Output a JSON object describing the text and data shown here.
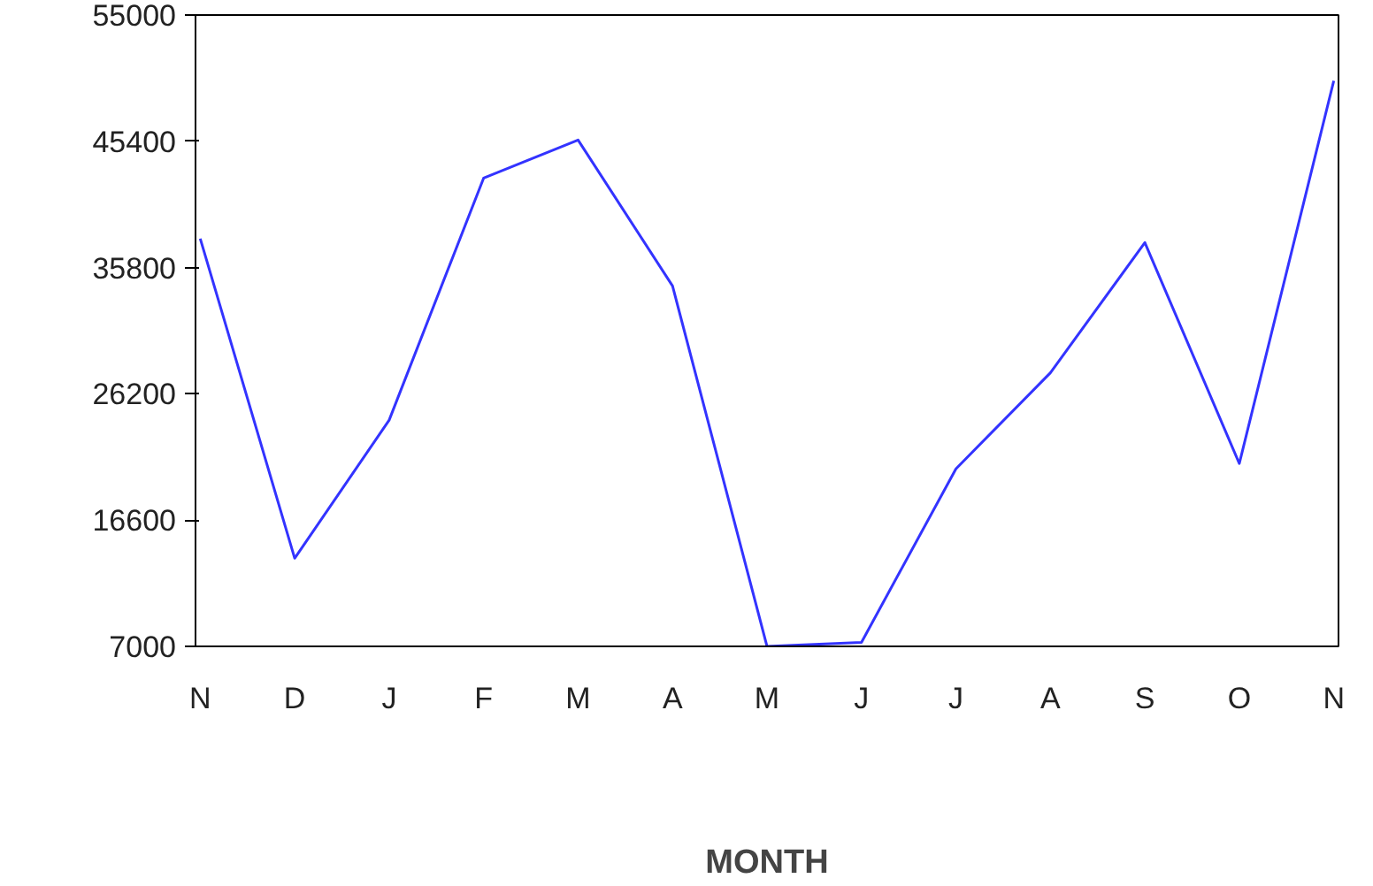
{
  "chart_data": {
    "type": "line",
    "xlabel": "MONTH",
    "categories": [
      "N",
      "D",
      "J",
      "F",
      "M",
      "A",
      "M",
      "J",
      "J",
      "A",
      "S",
      "O",
      "N"
    ],
    "series": [
      {
        "color": "#3333ff",
        "values": [
          38000,
          13700,
          24200,
          42600,
          45500,
          34400,
          7000,
          7300,
          20500,
          27800,
          37700,
          20900,
          50000
        ]
      }
    ],
    "ylim": [
      7000,
      55000
    ],
    "yticks": [
      7000,
      16600,
      26200,
      35800,
      45400,
      55000
    ],
    "grid": false,
    "marker": "none",
    "line_style": "solid"
  }
}
